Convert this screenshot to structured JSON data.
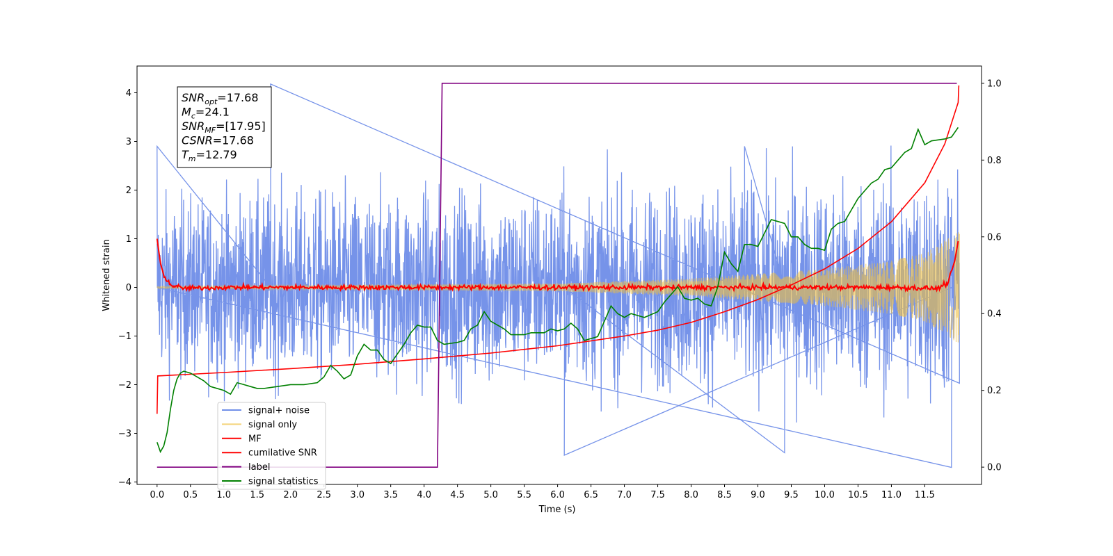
{
  "chart_data": {
    "type": "line",
    "xlabel": "Time (s)",
    "ylabel_left": "Whitened strain",
    "xlim": [
      -0.3,
      12.35
    ],
    "ylim_left": [
      -4.05,
      4.55
    ],
    "ylim_right": [
      -0.045,
      1.045
    ],
    "x_ticks": [
      0.0,
      0.5,
      1.0,
      1.5,
      2.0,
      2.5,
      3.0,
      3.5,
      4.0,
      4.5,
      5.0,
      5.5,
      6.0,
      6.5,
      7.0,
      7.5,
      8.0,
      8.5,
      9.0,
      9.5,
      10.0,
      10.5,
      11.0,
      11.5
    ],
    "x_tick_labels": [
      "0.0",
      "0.5",
      "1.0",
      "1.5",
      "2.0",
      "2.5",
      "3.0",
      "3.5",
      "4.0",
      "4.5",
      "5.0",
      "5.5",
      "6.0",
      "6.5",
      "7.0",
      "7.5",
      "8.0",
      "8.5",
      "9.0",
      "9.5",
      "10.0",
      "10.5",
      "11.0",
      "11.5"
    ],
    "y_left_ticks": [
      -4,
      -3,
      -2,
      -1,
      0,
      1,
      2,
      3,
      4
    ],
    "y_left_tick_labels": [
      "−4",
      "−3",
      "−2",
      "−1",
      "0",
      "1",
      "2",
      "3",
      "4"
    ],
    "y_right_ticks": [
      0.0,
      0.2,
      0.4,
      0.6,
      0.8,
      1.0
    ],
    "y_right_tick_labels": [
      "0.0",
      "0.2",
      "0.4",
      "0.6",
      "0.8",
      "1.0"
    ],
    "grid": false,
    "legend_position": "lower-left",
    "annotation": {
      "lines": [
        {
          "base": "SNR",
          "sub": "opt",
          "value": "=17.68"
        },
        {
          "base": "M",
          "sub": "c",
          "value": "=24.1"
        },
        {
          "base": "SNR",
          "sub": "MF",
          "value": "=[17.95]"
        },
        {
          "base": "CSNR",
          "sub": "",
          "value": "=17.68"
        },
        {
          "base": "T",
          "sub": "m",
          "value": "=12.79"
        }
      ]
    },
    "series": [
      {
        "name": "signal+ noise",
        "axis": "left",
        "color": "#4169e1",
        "style": "noise",
        "amplitude_envelope": [
          [
            0.0,
            2.3
          ],
          [
            2.0,
            2.4
          ],
          [
            4.0,
            2.5
          ],
          [
            6.0,
            2.5
          ],
          [
            8.0,
            2.6
          ],
          [
            10.0,
            2.7
          ],
          [
            12.0,
            2.9
          ]
        ],
        "peaks": [
          [
            1.7,
            4.18
          ],
          [
            0.0,
            2.9
          ],
          [
            11.9,
            -3.7
          ],
          [
            6.1,
            -3.45
          ],
          [
            9.4,
            -3.4
          ],
          [
            8.8,
            2.9
          ]
        ]
      },
      {
        "name": "signal only",
        "axis": "left",
        "color": "#f0c040",
        "style": "chirp",
        "amplitude_envelope": [
          [
            0.0,
            0.02
          ],
          [
            6.0,
            0.08
          ],
          [
            8.0,
            0.18
          ],
          [
            10.0,
            0.38
          ],
          [
            11.0,
            0.55
          ],
          [
            11.5,
            0.7
          ],
          [
            12.0,
            1.15
          ]
        ]
      },
      {
        "name": "MF",
        "axis": "left",
        "color": "#ff0000",
        "points": [
          [
            0.0,
            1.0
          ],
          [
            0.05,
            0.5
          ],
          [
            0.1,
            0.25
          ],
          [
            0.2,
            0.05
          ],
          [
            0.4,
            -0.02
          ],
          [
            1.0,
            0.0
          ],
          [
            2.0,
            0.0
          ],
          [
            3.0,
            0.0
          ],
          [
            4.0,
            0.0
          ],
          [
            5.0,
            0.0
          ],
          [
            6.0,
            0.0
          ],
          [
            7.0,
            0.0
          ],
          [
            8.0,
            0.0
          ],
          [
            9.0,
            0.0
          ],
          [
            10.0,
            0.0
          ],
          [
            11.0,
            0.0
          ],
          [
            11.7,
            -0.02
          ],
          [
            11.85,
            0.1
          ],
          [
            11.95,
            0.55
          ],
          [
            12.0,
            0.95
          ]
        ],
        "jitter": 0.035
      },
      {
        "name": "cumilative SNR",
        "axis": "left",
        "color": "#ff0000",
        "points": [
          [
            0.0,
            -2.6
          ],
          [
            0.01,
            -1.82
          ],
          [
            1.0,
            -1.75
          ],
          [
            2.0,
            -1.67
          ],
          [
            3.0,
            -1.58
          ],
          [
            4.0,
            -1.47
          ],
          [
            5.0,
            -1.35
          ],
          [
            6.0,
            -1.2
          ],
          [
            7.0,
            -1.0
          ],
          [
            7.5,
            -0.88
          ],
          [
            8.0,
            -0.72
          ],
          [
            8.5,
            -0.5
          ],
          [
            9.0,
            -0.25
          ],
          [
            9.5,
            0.05
          ],
          [
            10.0,
            0.38
          ],
          [
            10.5,
            0.8
          ],
          [
            11.0,
            1.35
          ],
          [
            11.5,
            2.15
          ],
          [
            11.8,
            2.95
          ],
          [
            12.0,
            3.8
          ],
          [
            12.01,
            4.15
          ]
        ]
      },
      {
        "name": "label",
        "axis": "right",
        "color": "#800080",
        "points": [
          [
            0.0,
            0.0
          ],
          [
            4.2,
            0.0
          ],
          [
            4.27,
            1.0
          ],
          [
            11.98,
            1.0
          ]
        ]
      },
      {
        "name": "signal statistics",
        "axis": "right",
        "color": "#008000",
        "points": [
          [
            0.0,
            0.065
          ],
          [
            0.05,
            0.04
          ],
          [
            0.1,
            0.055
          ],
          [
            0.15,
            0.09
          ],
          [
            0.2,
            0.15
          ],
          [
            0.25,
            0.2
          ],
          [
            0.3,
            0.23
          ],
          [
            0.35,
            0.245
          ],
          [
            0.4,
            0.25
          ],
          [
            0.5,
            0.245
          ],
          [
            0.6,
            0.235
          ],
          [
            0.7,
            0.225
          ],
          [
            0.8,
            0.21
          ],
          [
            0.9,
            0.205
          ],
          [
            1.0,
            0.2
          ],
          [
            1.1,
            0.19
          ],
          [
            1.2,
            0.22
          ],
          [
            1.3,
            0.215
          ],
          [
            1.4,
            0.21
          ],
          [
            1.5,
            0.205
          ],
          [
            1.6,
            0.205
          ],
          [
            1.8,
            0.21
          ],
          [
            2.0,
            0.215
          ],
          [
            2.2,
            0.215
          ],
          [
            2.4,
            0.22
          ],
          [
            2.5,
            0.235
          ],
          [
            2.6,
            0.265
          ],
          [
            2.7,
            0.25
          ],
          [
            2.8,
            0.23
          ],
          [
            2.9,
            0.24
          ],
          [
            3.0,
            0.29
          ],
          [
            3.1,
            0.32
          ],
          [
            3.2,
            0.305
          ],
          [
            3.3,
            0.305
          ],
          [
            3.4,
            0.28
          ],
          [
            3.5,
            0.27
          ],
          [
            3.6,
            0.295
          ],
          [
            3.7,
            0.32
          ],
          [
            3.8,
            0.35
          ],
          [
            3.9,
            0.37
          ],
          [
            4.0,
            0.365
          ],
          [
            4.1,
            0.365
          ],
          [
            4.2,
            0.33
          ],
          [
            4.3,
            0.32
          ],
          [
            4.5,
            0.325
          ],
          [
            4.6,
            0.33
          ],
          [
            4.7,
            0.36
          ],
          [
            4.8,
            0.37
          ],
          [
            4.9,
            0.405
          ],
          [
            5.0,
            0.38
          ],
          [
            5.1,
            0.37
          ],
          [
            5.2,
            0.36
          ],
          [
            5.3,
            0.345
          ],
          [
            5.5,
            0.345
          ],
          [
            5.6,
            0.35
          ],
          [
            5.8,
            0.35
          ],
          [
            5.9,
            0.36
          ],
          [
            6.0,
            0.355
          ],
          [
            6.1,
            0.36
          ],
          [
            6.2,
            0.375
          ],
          [
            6.3,
            0.36
          ],
          [
            6.4,
            0.33
          ],
          [
            6.5,
            0.335
          ],
          [
            6.6,
            0.34
          ],
          [
            6.7,
            0.38
          ],
          [
            6.8,
            0.42
          ],
          [
            6.9,
            0.4
          ],
          [
            7.0,
            0.39
          ],
          [
            7.1,
            0.4
          ],
          [
            7.2,
            0.395
          ],
          [
            7.3,
            0.39
          ],
          [
            7.5,
            0.405
          ],
          [
            7.6,
            0.43
          ],
          [
            7.7,
            0.45
          ],
          [
            7.8,
            0.47
          ],
          [
            7.9,
            0.44
          ],
          [
            8.0,
            0.435
          ],
          [
            8.1,
            0.44
          ],
          [
            8.2,
            0.425
          ],
          [
            8.3,
            0.42
          ],
          [
            8.4,
            0.47
          ],
          [
            8.5,
            0.56
          ],
          [
            8.6,
            0.53
          ],
          [
            8.7,
            0.51
          ],
          [
            8.8,
            0.58
          ],
          [
            8.9,
            0.58
          ],
          [
            9.0,
            0.575
          ],
          [
            9.1,
            0.61
          ],
          [
            9.2,
            0.645
          ],
          [
            9.3,
            0.64
          ],
          [
            9.4,
            0.635
          ],
          [
            9.5,
            0.6
          ],
          [
            9.6,
            0.6
          ],
          [
            9.7,
            0.58
          ],
          [
            9.8,
            0.57
          ],
          [
            9.9,
            0.57
          ],
          [
            10.0,
            0.565
          ],
          [
            10.1,
            0.62
          ],
          [
            10.2,
            0.635
          ],
          [
            10.3,
            0.64
          ],
          [
            10.4,
            0.67
          ],
          [
            10.5,
            0.7
          ],
          [
            10.6,
            0.72
          ],
          [
            10.7,
            0.74
          ],
          [
            10.8,
            0.75
          ],
          [
            10.9,
            0.775
          ],
          [
            11.0,
            0.78
          ],
          [
            11.1,
            0.8
          ],
          [
            11.2,
            0.82
          ],
          [
            11.3,
            0.83
          ],
          [
            11.4,
            0.88
          ],
          [
            11.5,
            0.84
          ],
          [
            11.6,
            0.85
          ],
          [
            11.8,
            0.855
          ],
          [
            11.9,
            0.86
          ],
          [
            12.0,
            0.885
          ]
        ]
      }
    ]
  }
}
